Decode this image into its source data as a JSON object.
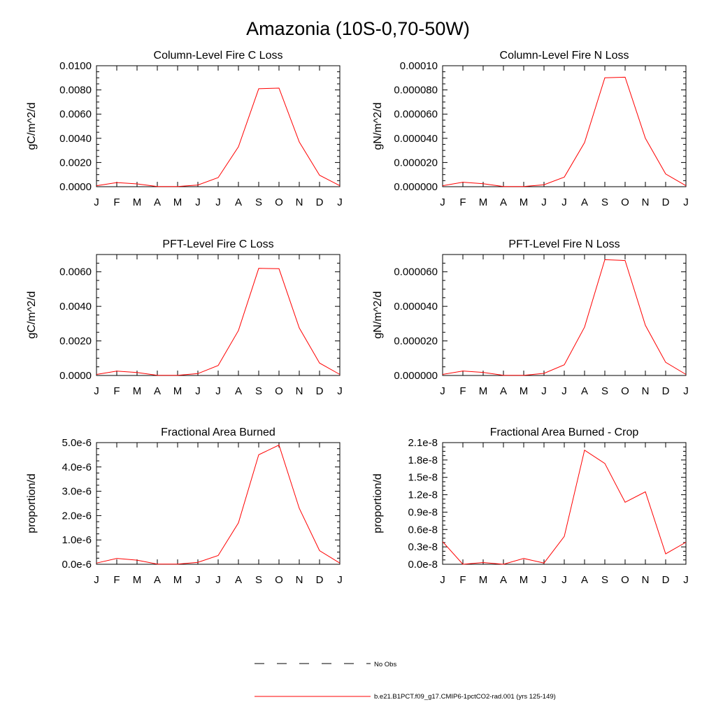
{
  "title": "Amazonia (10S-0,70-50W)",
  "series_color": "#ff0000",
  "chart_data": [
    {
      "type": "line",
      "title": "Column-Level Fire C Loss",
      "ylabel": "gC/m^2/d",
      "categories": [
        "J",
        "F",
        "M",
        "A",
        "M",
        "J",
        "J",
        "A",
        "S",
        "O",
        "N",
        "D",
        "J"
      ],
      "ylim": [
        0,
        0.01
      ],
      "yticks": [
        0,
        0.002,
        0.004,
        0.006,
        0.008,
        0.01
      ],
      "ytick_labels": [
        "0.0000",
        "0.0020",
        "0.0040",
        "0.0060",
        "0.0080",
        "0.0100"
      ],
      "series": [
        {
          "values": [
            8e-05,
            0.00034,
            0.00023,
            1e-05,
            1e-05,
            0.00014,
            0.00075,
            0.0033,
            0.0081,
            0.00815,
            0.0037,
            0.00095,
            8e-05
          ]
        }
      ]
    },
    {
      "type": "line",
      "title": "Column-Level Fire N Loss",
      "ylabel": "gN/m^2/d",
      "categories": [
        "J",
        "F",
        "M",
        "A",
        "M",
        "J",
        "J",
        "A",
        "S",
        "O",
        "N",
        "D",
        "J"
      ],
      "ylim": [
        0,
        0.0001
      ],
      "yticks": [
        0,
        2e-05,
        4e-05,
        6e-05,
        8e-05,
        0.0001
      ],
      "ytick_labels": [
        "0.000000",
        "0.000020",
        "0.000040",
        "0.000060",
        "0.000080",
        "0.00010"
      ],
      "series": [
        {
          "values": [
            8e-07,
            3.7e-06,
            2.5e-06,
            1e-07,
            1e-07,
            1.6e-06,
            7.9e-06,
            3.65e-05,
            9e-05,
            9.05e-05,
            4e-05,
            1.05e-05,
            8e-07
          ]
        }
      ]
    },
    {
      "type": "line",
      "title": "PFT-Level Fire C Loss",
      "ylabel": "gC/m^2/d",
      "categories": [
        "J",
        "F",
        "M",
        "A",
        "M",
        "J",
        "J",
        "A",
        "S",
        "O",
        "N",
        "D",
        "J"
      ],
      "ylim": [
        0,
        0.007
      ],
      "yticks": [
        0,
        0.002,
        0.004,
        0.006
      ],
      "ytick_labels": [
        "0.0000",
        "0.0020",
        "0.0040",
        "0.0060"
      ],
      "series": [
        {
          "values": [
            6e-05,
            0.00025,
            0.00017,
            1e-05,
            1e-05,
            0.00011,
            0.00058,
            0.0026,
            0.0062,
            0.00618,
            0.00275,
            0.00072,
            6e-05
          ]
        }
      ]
    },
    {
      "type": "line",
      "title": "PFT-Level Fire N Loss",
      "ylabel": "gN/m^2/d",
      "categories": [
        "J",
        "F",
        "M",
        "A",
        "M",
        "J",
        "J",
        "A",
        "S",
        "O",
        "N",
        "D",
        "J"
      ],
      "ylim": [
        0,
        7e-05
      ],
      "yticks": [
        0,
        2e-05,
        4e-05,
        6e-05
      ],
      "ytick_labels": [
        "0.000000",
        "0.000020",
        "0.000040",
        "0.000060"
      ],
      "series": [
        {
          "values": [
            6e-07,
            2.6e-06,
            1.8e-06,
            1e-07,
            1e-07,
            1.2e-06,
            6.2e-06,
            2.8e-05,
            6.7e-05,
            6.65e-05,
            2.9e-05,
            7.6e-06,
            6e-07
          ]
        }
      ]
    },
    {
      "type": "line",
      "title": "Fractional Area Burned",
      "ylabel": "proportion/d",
      "categories": [
        "J",
        "F",
        "M",
        "A",
        "M",
        "J",
        "J",
        "A",
        "S",
        "O",
        "N",
        "D",
        "J"
      ],
      "ylim": [
        0,
        5e-06
      ],
      "yticks": [
        0,
        1e-06,
        2e-06,
        3e-06,
        4e-06,
        5e-06
      ],
      "ytick_labels": [
        "0.0e-6",
        "1.0e-6",
        "2.0e-6",
        "3.0e-6",
        "4.0e-6",
        "5.0e-6"
      ],
      "series": [
        {
          "values": [
            5e-08,
            2.4e-07,
            1.7e-07,
            1e-08,
            1e-08,
            8e-08,
            3.6e-07,
            1.7e-06,
            4.5e-06,
            4.9e-06,
            2.3e-06,
            5.6e-07,
            5e-08
          ]
        }
      ]
    },
    {
      "type": "line",
      "title": "Fractional Area Burned - Crop",
      "ylabel": "proportion/d",
      "categories": [
        "J",
        "F",
        "M",
        "A",
        "M",
        "J",
        "J",
        "A",
        "S",
        "O",
        "N",
        "D",
        "J"
      ],
      "ylim": [
        0,
        2.1e-08
      ],
      "yticks": [
        0,
        3e-09,
        6e-09,
        9e-09,
        1.2e-08,
        1.5e-08,
        1.8e-08,
        2.1e-08
      ],
      "ytick_labels": [
        "0.0e-8",
        "0.3e-8",
        "0.6e-8",
        "0.9e-8",
        "1.2e-8",
        "1.5e-8",
        "1.8e-8",
        "2.1e-8"
      ],
      "series": [
        {
          "values": [
            3.9e-09,
            0.0,
            3e-10,
            0.0,
            1e-09,
            2e-10,
            4.8e-09,
            1.97e-08,
            1.74e-08,
            1.07e-08,
            1.25e-08,
            1.8e-09,
            3.8e-09
          ]
        }
      ]
    }
  ],
  "legend": {
    "items": [
      {
        "label": "No Obs",
        "style": "dashed",
        "color": "#000000"
      },
      {
        "label": "b.e21.B1PCT.f09_g17.CMIP6-1pctCO2-rad.001 (yrs 125-149)",
        "style": "solid",
        "color": "#ff0000"
      }
    ]
  }
}
